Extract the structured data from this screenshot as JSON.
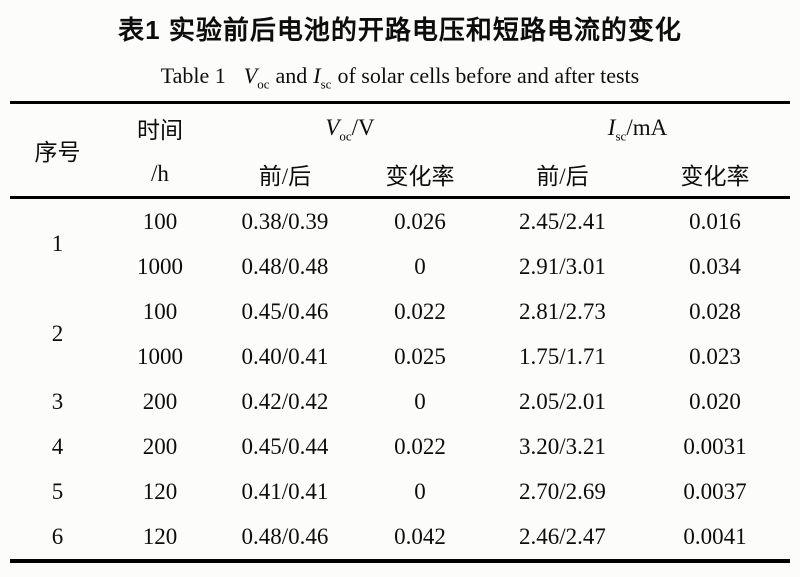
{
  "page": {
    "background": "#fcfcfa",
    "ink": "#0d0d0d"
  },
  "title": {
    "zh": "表1  实验前后电池的开路电压和短路电流的变化"
  },
  "subtitle": {
    "label": "Table 1",
    "voc_symbol": "V",
    "voc_sub": "oc",
    "mid": "and",
    "isc_symbol": "I",
    "isc_sub": "sc",
    "rest": "of solar cells before and after tests"
  },
  "table": {
    "header": {
      "serial": "序号",
      "time_top": "时间",
      "time_unit": "/h",
      "voc_group": {
        "symbol": "V",
        "sub": "oc",
        "unit": "/V"
      },
      "isc_group": {
        "symbol": "I",
        "sub": "sc",
        "unit": "/mA"
      },
      "voc_before_after": "前/后",
      "voc_change_rate": "变化率",
      "isc_before_after": "前/后",
      "isc_change_rate": "变化率"
    },
    "rows": [
      {
        "serial": "1",
        "rowspan": 2,
        "time": "100",
        "voc": "0.38/0.39",
        "voc_rate": "0.026",
        "isc": "2.45/2.41",
        "isc_rate": "0.016"
      },
      {
        "serial": "",
        "rowspan": 0,
        "time": "1000",
        "voc": "0.48/0.48",
        "voc_rate": "0",
        "isc": "2.91/3.01",
        "isc_rate": "0.034"
      },
      {
        "serial": "2",
        "rowspan": 2,
        "time": "100",
        "voc": "0.45/0.46",
        "voc_rate": "0.022",
        "isc": "2.81/2.73",
        "isc_rate": "0.028"
      },
      {
        "serial": "",
        "rowspan": 0,
        "time": "1000",
        "voc": "0.40/0.41",
        "voc_rate": "0.025",
        "isc": "1.75/1.71",
        "isc_rate": "0.023"
      },
      {
        "serial": "3",
        "rowspan": 1,
        "time": "200",
        "voc": "0.42/0.42",
        "voc_rate": "0",
        "isc": "2.05/2.01",
        "isc_rate": "0.020"
      },
      {
        "serial": "4",
        "rowspan": 1,
        "time": "200",
        "voc": "0.45/0.44",
        "voc_rate": "0.022",
        "isc": "3.20/3.21",
        "isc_rate": "0.0031"
      },
      {
        "serial": "5",
        "rowspan": 1,
        "time": "120",
        "voc": "0.41/0.41",
        "voc_rate": "0",
        "isc": "2.70/2.69",
        "isc_rate": "0.0037"
      },
      {
        "serial": "6",
        "rowspan": 1,
        "time": "120",
        "voc": "0.48/0.46",
        "voc_rate": "0.042",
        "isc": "2.46/2.47",
        "isc_rate": "0.0041"
      }
    ]
  }
}
